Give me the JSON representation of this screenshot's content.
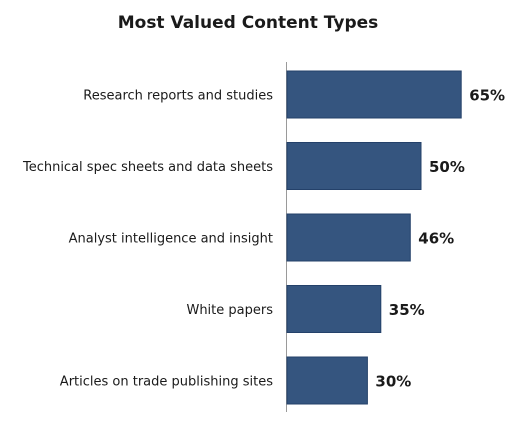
{
  "chart_data": {
    "type": "bar",
    "orientation": "horizontal",
    "title": "Most Valued Content Types",
    "categories": [
      "Research reports and studies",
      "Technical spec sheets and data sheets",
      "Analyst intelligence and insight",
      "White papers",
      "Articles on trade publishing sites"
    ],
    "values": [
      65,
      50,
      46,
      35,
      30
    ],
    "value_labels": [
      "65%",
      "50%",
      "46%",
      "35%",
      "30%"
    ],
    "unit": "%",
    "xlim": [
      0,
      70
    ],
    "grid": false,
    "legend": "none",
    "bar_color": "#35557f"
  }
}
